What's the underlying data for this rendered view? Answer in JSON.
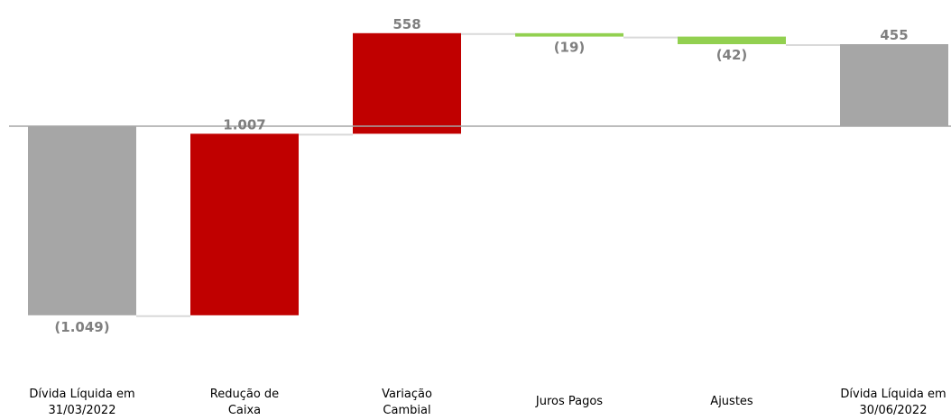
{
  "chart_data": {
    "type": "bar",
    "subtype": "waterfall",
    "categories": [
      [
        "Dívida Líquida em",
        "31/03/2022"
      ],
      [
        "Redução de",
        "Caixa"
      ],
      [
        "Variação",
        "Cambial"
      ],
      [
        "Juros Pagos"
      ],
      [
        "Ajustes"
      ],
      [
        "Dívida Líquida em",
        "30/06/2022"
      ]
    ],
    "values": [
      -1049,
      1007,
      558,
      -19,
      -42,
      455
    ],
    "value_labels": [
      "(1.049)",
      "1.007",
      "558",
      "(19)",
      "(42)",
      "455"
    ],
    "measures": [
      "absolute",
      "relative",
      "relative",
      "relative",
      "relative",
      "total"
    ],
    "ylim": [
      -1075,
      555
    ],
    "grid": false,
    "legend": "none",
    "colors": {
      "total": "#a6a6a6",
      "increase": "#c00000",
      "decrease": "#92d050",
      "connector": "#d9d9d9",
      "axis": "#a6a6a6",
      "value_label": "#7f7f7f",
      "category_label": "#000000"
    }
  }
}
